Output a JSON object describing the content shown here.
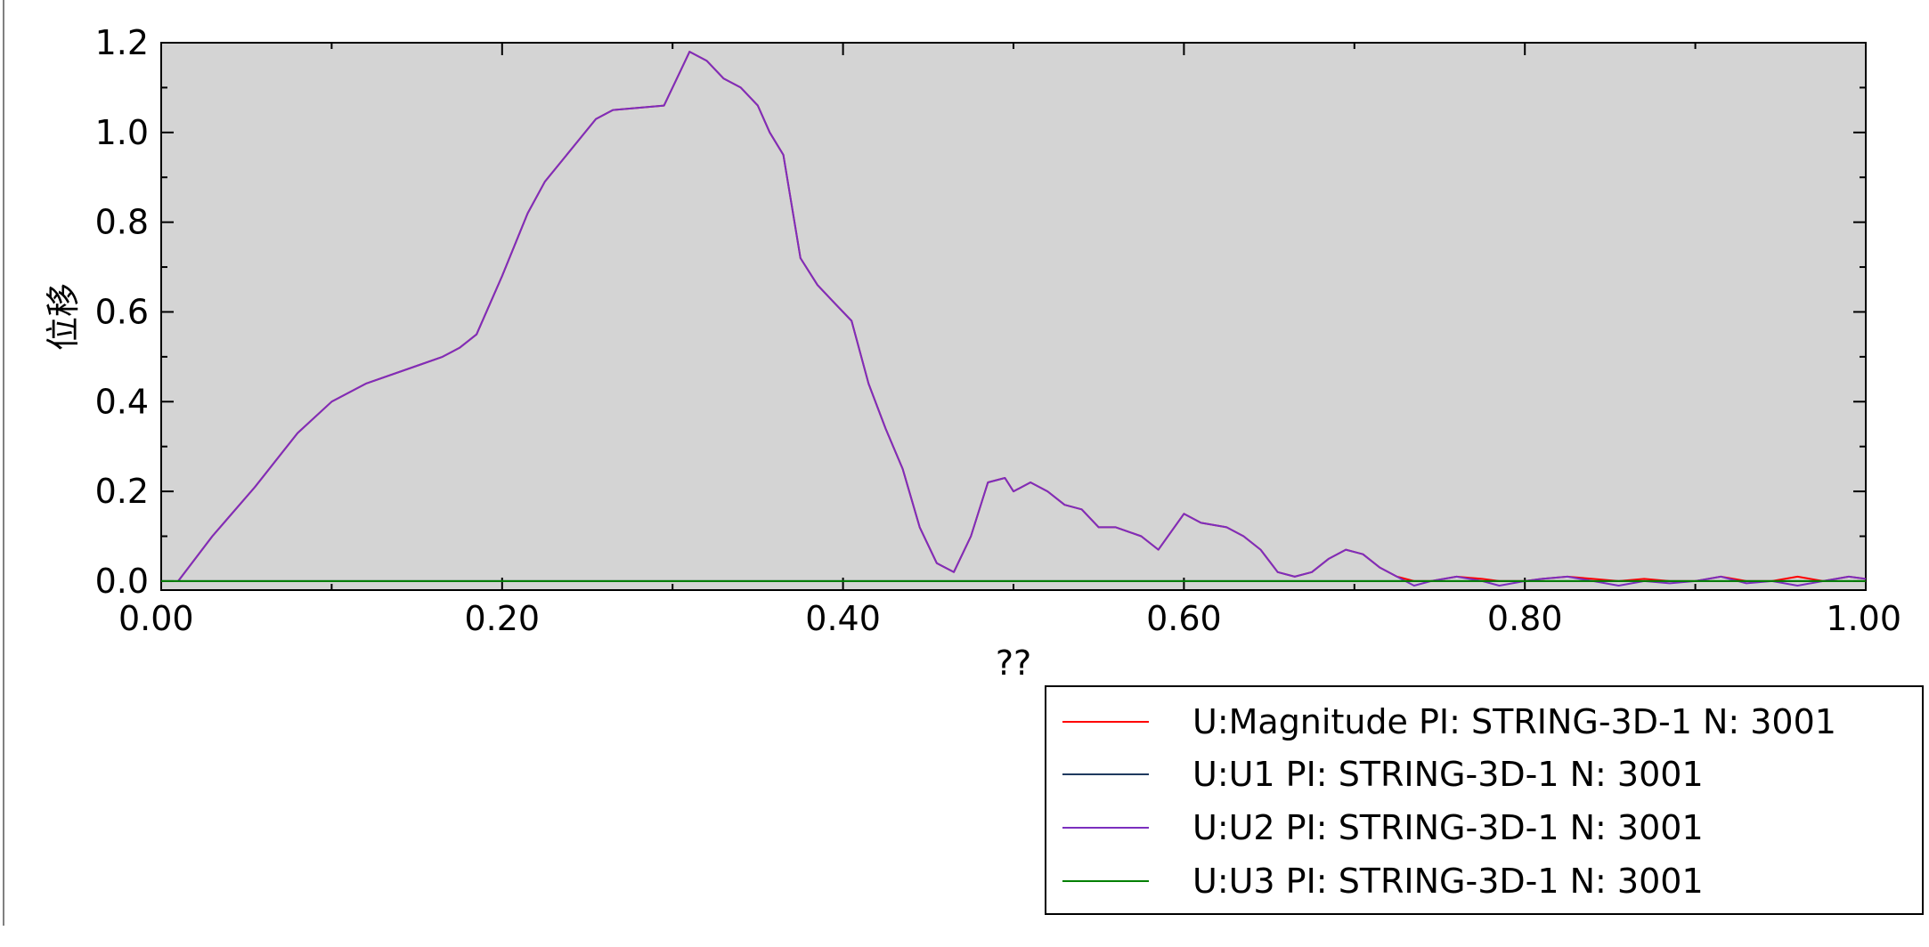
{
  "chart_data": {
    "type": "line",
    "title": "",
    "xlabel": "??",
    "ylabel": "位移",
    "xlim": [
      0.0,
      1.0
    ],
    "ylim": [
      -0.02,
      1.2
    ],
    "x_ticks": [
      "0.00",
      "0.20",
      "0.40",
      "0.60",
      "0.80",
      "1.00"
    ],
    "y_ticks": [
      "0.0",
      "0.2",
      "0.4",
      "0.6",
      "0.8",
      "1.0",
      "1.2"
    ],
    "grid": false,
    "legend_position": "bottom-right",
    "series": [
      {
        "name": "U:Magnitude PI: STRING-3D-1 N: 3001",
        "color": "#ff0000",
        "x": [
          0.01,
          0.03,
          0.055,
          0.08,
          0.1,
          0.12,
          0.15,
          0.165,
          0.175,
          0.185,
          0.2,
          0.215,
          0.225,
          0.24,
          0.255,
          0.265,
          0.28,
          0.295,
          0.31,
          0.32,
          0.33,
          0.34,
          0.35,
          0.357,
          0.365,
          0.375,
          0.385,
          0.395,
          0.405,
          0.415,
          0.425,
          0.435,
          0.445,
          0.455,
          0.465,
          0.475,
          0.485,
          0.495,
          0.5,
          0.51,
          0.52,
          0.53,
          0.54,
          0.55,
          0.56,
          0.575,
          0.585,
          0.6,
          0.61,
          0.625,
          0.635,
          0.645,
          0.655,
          0.665,
          0.675,
          0.685,
          0.695,
          0.705,
          0.715,
          0.725,
          0.735,
          0.745,
          0.76,
          0.775,
          0.785,
          0.8,
          0.81,
          0.825,
          0.84,
          0.855,
          0.87,
          0.885,
          0.9,
          0.915,
          0.93,
          0.945,
          0.96,
          0.975,
          0.99,
          1.0
        ],
        "y": [
          0.0,
          0.1,
          0.21,
          0.33,
          0.4,
          0.44,
          0.48,
          0.5,
          0.52,
          0.55,
          0.68,
          0.82,
          0.89,
          0.96,
          1.03,
          1.05,
          1.055,
          1.06,
          1.18,
          1.16,
          1.12,
          1.1,
          1.06,
          1.0,
          0.95,
          0.72,
          0.66,
          0.62,
          0.58,
          0.44,
          0.34,
          0.25,
          0.12,
          0.04,
          0.02,
          0.1,
          0.22,
          0.23,
          0.2,
          0.22,
          0.2,
          0.17,
          0.16,
          0.12,
          0.12,
          0.1,
          0.07,
          0.15,
          0.13,
          0.12,
          0.1,
          0.07,
          0.02,
          0.01,
          0.02,
          0.05,
          0.07,
          0.06,
          0.03,
          0.01,
          0.0,
          0.0,
          0.01,
          0.005,
          0.0,
          0.0,
          0.005,
          0.01,
          0.005,
          0.0,
          0.005,
          0.0,
          0.0,
          0.01,
          0.0,
          0.0,
          0.01,
          0.0,
          0.01,
          0.005
        ]
      },
      {
        "name": "U:U1 PI: STRING-3D-1 N: 3001",
        "color": "#1f3a5f",
        "x": [
          0.0,
          1.0
        ],
        "y": [
          0.0,
          0.0
        ]
      },
      {
        "name": "U:U2 PI: STRING-3D-1 N: 3001",
        "color": "#7b2fbe",
        "x": [
          0.01,
          0.03,
          0.055,
          0.08,
          0.1,
          0.12,
          0.15,
          0.165,
          0.175,
          0.185,
          0.2,
          0.215,
          0.225,
          0.24,
          0.255,
          0.265,
          0.28,
          0.295,
          0.31,
          0.32,
          0.33,
          0.34,
          0.35,
          0.357,
          0.365,
          0.375,
          0.385,
          0.395,
          0.405,
          0.415,
          0.425,
          0.435,
          0.445,
          0.455,
          0.465,
          0.475,
          0.485,
          0.495,
          0.5,
          0.51,
          0.52,
          0.53,
          0.54,
          0.55,
          0.56,
          0.575,
          0.585,
          0.6,
          0.61,
          0.625,
          0.635,
          0.645,
          0.655,
          0.665,
          0.675,
          0.685,
          0.695,
          0.705,
          0.715,
          0.725,
          0.735,
          0.745,
          0.76,
          0.775,
          0.785,
          0.8,
          0.81,
          0.825,
          0.84,
          0.855,
          0.87,
          0.885,
          0.9,
          0.915,
          0.93,
          0.945,
          0.96,
          0.975,
          0.99,
          1.0
        ],
        "y": [
          0.0,
          0.1,
          0.21,
          0.33,
          0.4,
          0.44,
          0.48,
          0.5,
          0.52,
          0.55,
          0.68,
          0.82,
          0.89,
          0.96,
          1.03,
          1.05,
          1.055,
          1.06,
          1.18,
          1.16,
          1.12,
          1.1,
          1.06,
          1.0,
          0.95,
          0.72,
          0.66,
          0.62,
          0.58,
          0.44,
          0.34,
          0.25,
          0.12,
          0.04,
          0.02,
          0.1,
          0.22,
          0.23,
          0.2,
          0.22,
          0.2,
          0.17,
          0.16,
          0.12,
          0.12,
          0.1,
          0.07,
          0.15,
          0.13,
          0.12,
          0.1,
          0.07,
          0.02,
          0.01,
          0.02,
          0.05,
          0.07,
          0.06,
          0.03,
          0.01,
          -0.01,
          0.0,
          0.01,
          0.0,
          -0.01,
          0.0,
          0.005,
          0.01,
          0.0,
          -0.01,
          0.0,
          -0.005,
          0.0,
          0.01,
          -0.005,
          0.0,
          -0.01,
          0.0,
          0.01,
          0.005
        ]
      },
      {
        "name": "U:U3 PI: STRING-3D-1 N: 3001",
        "color": "#008000",
        "x": [
          0.0,
          1.0
        ],
        "y": [
          0.0,
          0.0
        ]
      }
    ]
  }
}
